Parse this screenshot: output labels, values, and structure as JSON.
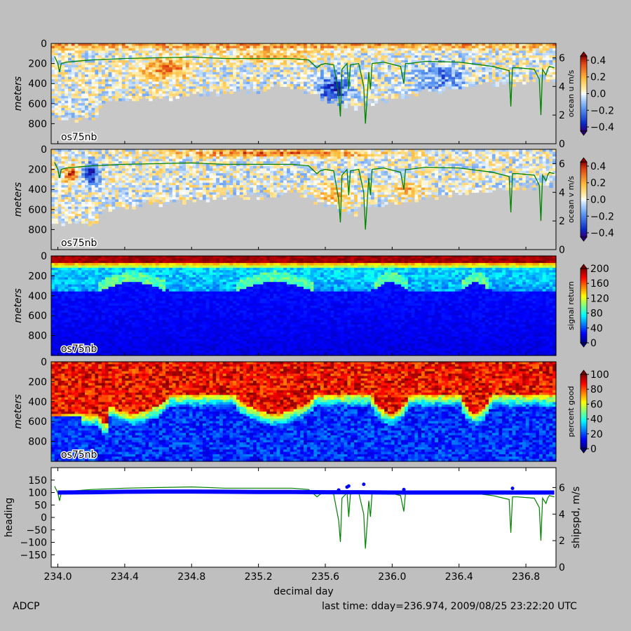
{
  "footer": {
    "left": "ADCP",
    "right": "last time: dday=236.974,  2009/08/25 23:22:20 UTC"
  },
  "colors": {
    "background": "#bfbfbf",
    "nodata": "#c8c8c8",
    "speed_line": "#008000",
    "heading": "#0000ff"
  },
  "chart_data": [
    {
      "type": "heatmap",
      "variable": "ocean u",
      "ylabel": "meters",
      "ylim": [
        1000,
        0
      ],
      "yticks": [
        "0",
        "200",
        "400",
        "600",
        "800"
      ],
      "xlim": [
        233.96,
        236.98
      ],
      "colorbar": {
        "label": "ocean u m/s",
        "range": [
          -0.45,
          0.45
        ],
        "ticks": [
          "0.4",
          "0.2",
          "0.0",
          "−0.2",
          "−0.4"
        ],
        "colormap": "bwr"
      },
      "right_axis": {
        "ylim": [
          0,
          7
        ],
        "ticks": [
          "6",
          "4",
          "2",
          "0"
        ]
      },
      "annotation": "os75nb"
    },
    {
      "type": "heatmap",
      "variable": "ocean v",
      "ylabel": "meters",
      "ylim": [
        1000,
        0
      ],
      "yticks": [
        "0",
        "200",
        "400",
        "600",
        "800"
      ],
      "xlim": [
        233.96,
        236.98
      ],
      "colorbar": {
        "label": "ocean v m/s",
        "range": [
          -0.45,
          0.45
        ],
        "ticks": [
          "0.4",
          "0.2",
          "0.0",
          "−0.2",
          "−0.4"
        ],
        "colormap": "bwr"
      },
      "right_axis": {
        "ylim": [
          0,
          7
        ],
        "ticks": [
          "6",
          "4",
          "2",
          "0"
        ]
      },
      "annotation": "os75nb"
    },
    {
      "type": "heatmap",
      "variable": "signal return",
      "ylabel": "meters",
      "ylim": [
        1000,
        0
      ],
      "yticks": [
        "0",
        "200",
        "400",
        "600",
        "800"
      ],
      "xlim": [
        233.96,
        236.98
      ],
      "colorbar": {
        "label": "signal return",
        "range": [
          0,
          200
        ],
        "ticks": [
          "200",
          "160",
          "120",
          "80",
          "40",
          "0"
        ],
        "colormap": "jet"
      },
      "annotation": "os75nb"
    },
    {
      "type": "heatmap",
      "variable": "percent good",
      "ylabel": "meters",
      "ylim": [
        1000,
        0
      ],
      "yticks": [
        "0",
        "200",
        "400",
        "600",
        "800"
      ],
      "xlim": [
        233.96,
        236.98
      ],
      "colorbar": {
        "label": "percent good",
        "range": [
          0,
          100
        ],
        "ticks": [
          "100",
          "80",
          "60",
          "40",
          "20",
          "0"
        ],
        "colormap": "jet"
      },
      "annotation": "os75nb"
    },
    {
      "type": "line",
      "ylabel": "heading",
      "ylabel_right": "shipspd, m/s",
      "xlabel": "decimal day",
      "xlim": [
        233.96,
        236.98
      ],
      "xticks": [
        "234.0",
        "234.4",
        "234.8",
        "235.2",
        "235.6",
        "236.0",
        "236.4",
        "236.8"
      ],
      "ylim": [
        -200,
        200
      ],
      "yticks": [
        "150",
        "100",
        "50",
        "0",
        "−50",
        "−100",
        "−150"
      ],
      "right_axis": {
        "ylim": [
          0,
          7.5
        ],
        "ticks": [
          "6",
          "4",
          "2",
          "0"
        ]
      },
      "series": [
        {
          "name": "heading",
          "x": [
            234.0,
            234.2,
            234.4,
            234.6,
            234.8,
            235.0,
            235.2,
            235.4,
            235.6,
            235.8,
            236.0,
            236.2,
            236.4,
            236.6,
            236.8,
            236.97
          ],
          "y": [
            100,
            101,
            103,
            104,
            104,
            103,
            102,
            102,
            101,
            101,
            100,
            100,
            100,
            100,
            100,
            100
          ]
        },
        {
          "name": "shipspd, m/s",
          "x": [
            233.98,
            234.0,
            234.01,
            234.02,
            234.05,
            234.2,
            234.4,
            234.6,
            234.8,
            235.0,
            235.2,
            235.4,
            235.5,
            235.55,
            235.57,
            235.6,
            235.65,
            235.68,
            235.69,
            235.7,
            235.73,
            235.74,
            235.75,
            235.8,
            235.83,
            235.84,
            235.86,
            235.87,
            235.88,
            235.95,
            236.05,
            236.07,
            236.08,
            236.1,
            236.2,
            236.4,
            236.6,
            236.7,
            236.71,
            236.72,
            236.75,
            236.85,
            236.88,
            236.89,
            236.9,
            236.92,
            236.93,
            236.94,
            236.97
          ],
          "y": [
            6.1,
            5.6,
            5.0,
            5.6,
            5.7,
            5.85,
            5.95,
            6.0,
            6.05,
            5.95,
            5.95,
            5.95,
            5.85,
            5.3,
            5.5,
            5.6,
            5.5,
            3.5,
            1.9,
            5.2,
            5.6,
            3.8,
            5.5,
            5.6,
            4.0,
            1.4,
            5.0,
            3.8,
            5.6,
            5.7,
            5.4,
            4.2,
            5.6,
            5.6,
            5.75,
            5.7,
            5.4,
            5.1,
            2.6,
            5.3,
            5.3,
            5.2,
            4.5,
            2.0,
            5.2,
            4.8,
            5.2,
            5.4,
            5.3
          ]
        }
      ],
      "heading_outliers": {
        "x": [
          235.68,
          235.73,
          235.74,
          235.83,
          236.07,
          236.72
        ],
        "y": [
          110,
          122,
          126,
          133,
          112,
          117
        ]
      }
    }
  ]
}
